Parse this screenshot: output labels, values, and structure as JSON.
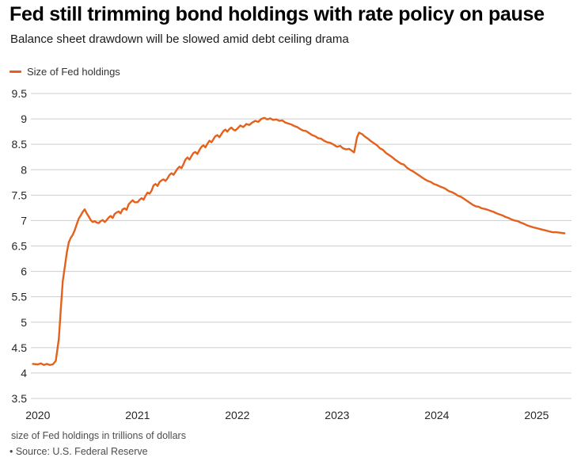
{
  "header": {
    "title": "Fed still trimming bond holdings with rate policy on pause",
    "subtitle": "Balance sheet drawdown will be slowed amid debt ceiling drama"
  },
  "legend": {
    "items": [
      {
        "label": "Size of Fed holdings",
        "color": "#e3611c"
      }
    ]
  },
  "footer": {
    "note": "size of Fed holdings in trillions of dollars",
    "source": "• Source: U.S. Federal Reserve"
  },
  "colors": {
    "line": "#e3611c",
    "grid": "#cdcdcd",
    "axis_text": "#262626",
    "footer_text": "#4d4d4d"
  },
  "chart_data": {
    "type": "line",
    "title": "Fed still trimming bond holdings with rate policy on pause",
    "subtitle": "Balance sheet drawdown will be slowed amid debt ceiling drama",
    "unit_note": "size of Fed holdings in trillions of dollars",
    "source": "U.S. Federal Reserve",
    "xlabel": "",
    "ylabel": "",
    "ylim": [
      3.5,
      9.5
    ],
    "yticks": [
      3.5,
      4,
      4.5,
      5,
      5.5,
      6,
      6.5,
      7,
      7.5,
      8,
      8.5,
      9,
      9.5
    ],
    "xlim": [
      2019.93,
      2025.35
    ],
    "xticks": [
      2020,
      2021,
      2022,
      2023,
      2024,
      2025
    ],
    "grid": "horizontal",
    "legend_position": "top-left",
    "series": [
      {
        "name": "Size of Fed holdings",
        "color": "#e3611c",
        "points": [
          [
            2019.95,
            4.18
          ],
          [
            2020.0,
            4.17
          ],
          [
            2020.03,
            4.19
          ],
          [
            2020.06,
            4.16
          ],
          [
            2020.09,
            4.18
          ],
          [
            2020.12,
            4.16
          ],
          [
            2020.15,
            4.17
          ],
          [
            2020.18,
            4.24
          ],
          [
            2020.21,
            4.67
          ],
          [
            2020.23,
            5.25
          ],
          [
            2020.25,
            5.81
          ],
          [
            2020.27,
            6.08
          ],
          [
            2020.29,
            6.37
          ],
          [
            2020.31,
            6.57
          ],
          [
            2020.33,
            6.66
          ],
          [
            2020.35,
            6.72
          ],
          [
            2020.37,
            6.81
          ],
          [
            2020.39,
            6.93
          ],
          [
            2020.41,
            7.04
          ],
          [
            2020.43,
            7.1
          ],
          [
            2020.45,
            7.17
          ],
          [
            2020.47,
            7.22
          ],
          [
            2020.49,
            7.14
          ],
          [
            2020.51,
            7.08
          ],
          [
            2020.53,
            7.01
          ],
          [
            2020.55,
            6.97
          ],
          [
            2020.57,
            6.99
          ],
          [
            2020.59,
            6.96
          ],
          [
            2020.61,
            6.95
          ],
          [
            2020.63,
            6.99
          ],
          [
            2020.65,
            7.01
          ],
          [
            2020.67,
            6.97
          ],
          [
            2020.69,
            7.01
          ],
          [
            2020.71,
            7.06
          ],
          [
            2020.73,
            7.09
          ],
          [
            2020.75,
            7.05
          ],
          [
            2020.77,
            7.13
          ],
          [
            2020.79,
            7.16
          ],
          [
            2020.81,
            7.18
          ],
          [
            2020.83,
            7.14
          ],
          [
            2020.85,
            7.22
          ],
          [
            2020.87,
            7.24
          ],
          [
            2020.89,
            7.21
          ],
          [
            2020.91,
            7.32
          ],
          [
            2020.93,
            7.36
          ],
          [
            2020.95,
            7.4
          ],
          [
            2020.97,
            7.36
          ],
          [
            2021.0,
            7.36
          ],
          [
            2021.02,
            7.41
          ],
          [
            2021.04,
            7.44
          ],
          [
            2021.06,
            7.41
          ],
          [
            2021.08,
            7.49
          ],
          [
            2021.1,
            7.55
          ],
          [
            2021.12,
            7.53
          ],
          [
            2021.14,
            7.59
          ],
          [
            2021.16,
            7.69
          ],
          [
            2021.18,
            7.72
          ],
          [
            2021.2,
            7.68
          ],
          [
            2021.22,
            7.76
          ],
          [
            2021.24,
            7.79
          ],
          [
            2021.26,
            7.81
          ],
          [
            2021.28,
            7.78
          ],
          [
            2021.3,
            7.83
          ],
          [
            2021.32,
            7.9
          ],
          [
            2021.34,
            7.93
          ],
          [
            2021.36,
            7.9
          ],
          [
            2021.38,
            7.96
          ],
          [
            2021.4,
            8.02
          ],
          [
            2021.42,
            8.06
          ],
          [
            2021.44,
            8.03
          ],
          [
            2021.46,
            8.11
          ],
          [
            2021.48,
            8.2
          ],
          [
            2021.5,
            8.24
          ],
          [
            2021.52,
            8.2
          ],
          [
            2021.54,
            8.27
          ],
          [
            2021.56,
            8.33
          ],
          [
            2021.58,
            8.35
          ],
          [
            2021.6,
            8.31
          ],
          [
            2021.62,
            8.39
          ],
          [
            2021.64,
            8.45
          ],
          [
            2021.66,
            8.48
          ],
          [
            2021.68,
            8.44
          ],
          [
            2021.7,
            8.51
          ],
          [
            2021.72,
            8.57
          ],
          [
            2021.74,
            8.54
          ],
          [
            2021.76,
            8.6
          ],
          [
            2021.78,
            8.66
          ],
          [
            2021.8,
            8.68
          ],
          [
            2021.82,
            8.64
          ],
          [
            2021.84,
            8.7
          ],
          [
            2021.86,
            8.76
          ],
          [
            2021.88,
            8.79
          ],
          [
            2021.9,
            8.75
          ],
          [
            2021.92,
            8.8
          ],
          [
            2021.94,
            8.83
          ],
          [
            2021.96,
            8.79
          ],
          [
            2021.98,
            8.77
          ],
          [
            2022.0,
            8.81
          ],
          [
            2022.03,
            8.87
          ],
          [
            2022.06,
            8.84
          ],
          [
            2022.09,
            8.9
          ],
          [
            2022.12,
            8.88
          ],
          [
            2022.15,
            8.93
          ],
          [
            2022.18,
            8.96
          ],
          [
            2022.21,
            8.94
          ],
          [
            2022.24,
            9.0
          ],
          [
            2022.27,
            9.02
          ],
          [
            2022.3,
            8.99
          ],
          [
            2022.33,
            9.01
          ],
          [
            2022.36,
            8.98
          ],
          [
            2022.39,
            8.99
          ],
          [
            2022.42,
            8.96
          ],
          [
            2022.45,
            8.97
          ],
          [
            2022.48,
            8.93
          ],
          [
            2022.51,
            8.91
          ],
          [
            2022.54,
            8.89
          ],
          [
            2022.57,
            8.86
          ],
          [
            2022.6,
            8.84
          ],
          [
            2022.63,
            8.8
          ],
          [
            2022.66,
            8.77
          ],
          [
            2022.69,
            8.76
          ],
          [
            2022.72,
            8.72
          ],
          [
            2022.75,
            8.68
          ],
          [
            2022.78,
            8.66
          ],
          [
            2022.81,
            8.62
          ],
          [
            2022.84,
            8.61
          ],
          [
            2022.87,
            8.57
          ],
          [
            2022.9,
            8.54
          ],
          [
            2022.93,
            8.53
          ],
          [
            2022.96,
            8.5
          ],
          [
            2023.0,
            8.45
          ],
          [
            2023.03,
            8.47
          ],
          [
            2023.06,
            8.42
          ],
          [
            2023.09,
            8.4
          ],
          [
            2023.12,
            8.41
          ],
          [
            2023.15,
            8.37
          ],
          [
            2023.17,
            8.34
          ],
          [
            2023.2,
            8.64
          ],
          [
            2023.22,
            8.73
          ],
          [
            2023.25,
            8.7
          ],
          [
            2023.28,
            8.65
          ],
          [
            2023.31,
            8.61
          ],
          [
            2023.34,
            8.56
          ],
          [
            2023.37,
            8.52
          ],
          [
            2023.4,
            8.48
          ],
          [
            2023.43,
            8.42
          ],
          [
            2023.46,
            8.39
          ],
          [
            2023.49,
            8.33
          ],
          [
            2023.52,
            8.29
          ],
          [
            2023.55,
            8.25
          ],
          [
            2023.58,
            8.2
          ],
          [
            2023.61,
            8.16
          ],
          [
            2023.64,
            8.12
          ],
          [
            2023.67,
            8.1
          ],
          [
            2023.7,
            8.04
          ],
          [
            2023.73,
            8.0
          ],
          [
            2023.76,
            7.97
          ],
          [
            2023.79,
            7.93
          ],
          [
            2023.82,
            7.89
          ],
          [
            2023.85,
            7.85
          ],
          [
            2023.88,
            7.81
          ],
          [
            2023.91,
            7.78
          ],
          [
            2023.94,
            7.76
          ],
          [
            2023.97,
            7.72
          ],
          [
            2024.0,
            7.7
          ],
          [
            2024.03,
            7.67
          ],
          [
            2024.06,
            7.65
          ],
          [
            2024.09,
            7.62
          ],
          [
            2024.12,
            7.58
          ],
          [
            2024.15,
            7.56
          ],
          [
            2024.18,
            7.53
          ],
          [
            2024.21,
            7.49
          ],
          [
            2024.24,
            7.47
          ],
          [
            2024.27,
            7.43
          ],
          [
            2024.3,
            7.39
          ],
          [
            2024.33,
            7.35
          ],
          [
            2024.36,
            7.31
          ],
          [
            2024.39,
            7.28
          ],
          [
            2024.42,
            7.27
          ],
          [
            2024.45,
            7.24
          ],
          [
            2024.48,
            7.23
          ],
          [
            2024.51,
            7.21
          ],
          [
            2024.54,
            7.19
          ],
          [
            2024.57,
            7.17
          ],
          [
            2024.6,
            7.14
          ],
          [
            2024.63,
            7.12
          ],
          [
            2024.66,
            7.1
          ],
          [
            2024.69,
            7.07
          ],
          [
            2024.72,
            7.05
          ],
          [
            2024.75,
            7.02
          ],
          [
            2024.78,
            7.0
          ],
          [
            2024.81,
            6.99
          ],
          [
            2024.84,
            6.96
          ],
          [
            2024.87,
            6.94
          ],
          [
            2024.9,
            6.91
          ],
          [
            2024.93,
            6.89
          ],
          [
            2024.96,
            6.87
          ],
          [
            2025.0,
            6.85
          ],
          [
            2025.04,
            6.83
          ],
          [
            2025.08,
            6.81
          ],
          [
            2025.12,
            6.79
          ],
          [
            2025.16,
            6.77
          ],
          [
            2025.2,
            6.77
          ],
          [
            2025.24,
            6.76
          ],
          [
            2025.28,
            6.75
          ]
        ]
      }
    ]
  }
}
